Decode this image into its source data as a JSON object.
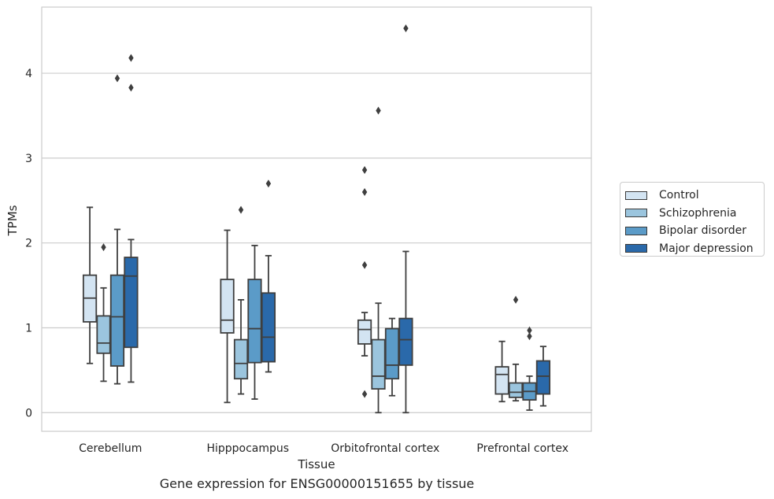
{
  "chart_data": {
    "type": "box",
    "xlabel": "Tissue",
    "ylabel": "TPMs",
    "ylim": [
      -0.22,
      4.78
    ],
    "yticks": [
      0,
      1,
      2,
      3,
      4
    ],
    "grid": "horizontal",
    "legend_position": "right",
    "categories": [
      "Cerebellum",
      "Hipppocampus",
      "Orbitofrontal cortex",
      "Prefrontal cortex"
    ],
    "series": [
      {
        "name": "Control",
        "color": "#d3e4f2",
        "boxes": [
          {
            "whislo": 0.58,
            "q1": 1.07,
            "med": 1.35,
            "q3": 1.62,
            "whishi": 2.42,
            "fliers": []
          },
          {
            "whislo": 0.12,
            "q1": 0.94,
            "med": 1.09,
            "q3": 1.57,
            "whishi": 2.15,
            "fliers": []
          },
          {
            "whislo": 0.67,
            "q1": 0.81,
            "med": 0.98,
            "q3": 1.09,
            "whishi": 1.18,
            "fliers": [
              0.22,
              1.74,
              2.6,
              2.86
            ]
          },
          {
            "whislo": 0.13,
            "q1": 0.22,
            "med": 0.45,
            "q3": 0.54,
            "whishi": 0.84,
            "fliers": []
          }
        ]
      },
      {
        "name": "Schizophrenia",
        "color": "#9bc5de",
        "boxes": [
          {
            "whislo": 0.37,
            "q1": 0.7,
            "med": 0.82,
            "q3": 1.14,
            "whishi": 1.47,
            "fliers": [
              1.95
            ]
          },
          {
            "whislo": 0.22,
            "q1": 0.4,
            "med": 0.58,
            "q3": 0.86,
            "whishi": 1.33,
            "fliers": [
              2.39
            ]
          },
          {
            "whislo": 0.0,
            "q1": 0.28,
            "med": 0.43,
            "q3": 0.86,
            "whishi": 1.29,
            "fliers": [
              3.56
            ]
          },
          {
            "whislo": 0.14,
            "q1": 0.18,
            "med": 0.24,
            "q3": 0.35,
            "whishi": 0.57,
            "fliers": [
              1.33
            ]
          }
        ]
      },
      {
        "name": "Bipolar disorder",
        "color": "#5b9bc8",
        "boxes": [
          {
            "whislo": 0.34,
            "q1": 0.55,
            "med": 1.13,
            "q3": 1.62,
            "whishi": 2.16,
            "fliers": [
              3.94
            ]
          },
          {
            "whislo": 0.16,
            "q1": 0.59,
            "med": 0.99,
            "q3": 1.57,
            "whishi": 1.97,
            "fliers": []
          },
          {
            "whislo": 0.2,
            "q1": 0.4,
            "med": 0.56,
            "q3": 0.99,
            "whishi": 1.11,
            "fliers": []
          },
          {
            "whislo": 0.03,
            "q1": 0.15,
            "med": 0.25,
            "q3": 0.35,
            "whishi": 0.43,
            "fliers": [
              0.9,
              0.97
            ]
          }
        ]
      },
      {
        "name": "Major depression",
        "color": "#2a69aa",
        "boxes": [
          {
            "whislo": 0.36,
            "q1": 0.77,
            "med": 1.61,
            "q3": 1.83,
            "whishi": 2.04,
            "fliers": [
              3.83,
              4.18
            ]
          },
          {
            "whislo": 0.48,
            "q1": 0.6,
            "med": 0.89,
            "q3": 1.41,
            "whishi": 1.85,
            "fliers": [
              2.7
            ]
          },
          {
            "whislo": 0.0,
            "q1": 0.56,
            "med": 0.86,
            "q3": 1.11,
            "whishi": 1.9,
            "fliers": [
              4.53
            ]
          },
          {
            "whislo": 0.08,
            "q1": 0.22,
            "med": 0.43,
            "q3": 0.61,
            "whishi": 0.78,
            "fliers": []
          }
        ]
      }
    ],
    "caption": "Gene expression for ENSG00000151655 by tissue"
  }
}
